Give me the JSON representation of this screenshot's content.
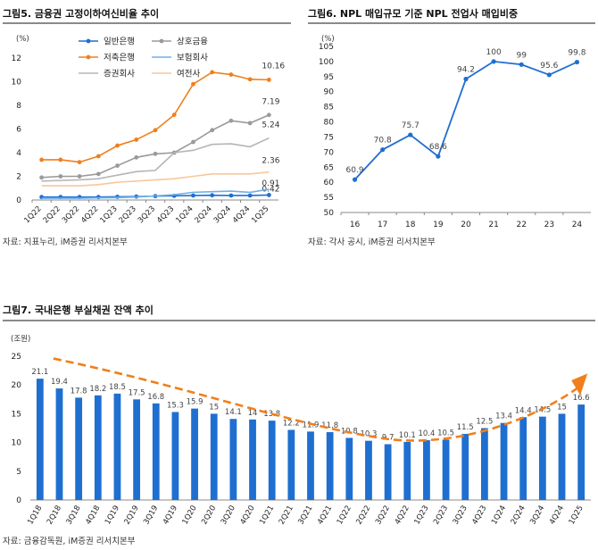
{
  "fig5": {
    "title": "그림5.  금융권 고정이하여신비율 추이",
    "source": "자료: 지표누리, iM증권 리서치본부",
    "chart_data": {
      "type": "line",
      "unit_label": "(%)",
      "ylim": [
        0,
        12
      ],
      "yticks": [
        0,
        2,
        4,
        6,
        8,
        10,
        12
      ],
      "categories": [
        "1Q22",
        "2Q22",
        "3Q22",
        "4Q22",
        "1Q23",
        "2Q23",
        "3Q23",
        "4Q23",
        "1Q24",
        "2Q24",
        "3Q24",
        "4Q24",
        "1Q25"
      ],
      "legend_position": "top",
      "series": [
        {
          "name": "일반은행",
          "color": "#1f6fd1",
          "marker": true,
          "values": [
            0.25,
            0.25,
            0.25,
            0.25,
            0.27,
            0.29,
            0.33,
            0.35,
            0.38,
            0.4,
            0.38,
            0.38,
            0.42
          ],
          "end_label": "0.42"
        },
        {
          "name": "상호금융",
          "color": "#9a9a9a",
          "marker": true,
          "values": [
            1.9,
            2.0,
            2.0,
            2.2,
            2.9,
            3.6,
            3.9,
            4.0,
            4.9,
            5.9,
            6.7,
            6.5,
            7.19
          ],
          "end_label": "7.19"
        },
        {
          "name": "저축은행",
          "color": "#f07f1c",
          "marker": true,
          "values": [
            3.4,
            3.4,
            3.2,
            3.7,
            4.6,
            5.1,
            5.9,
            7.2,
            9.8,
            10.8,
            10.6,
            10.2,
            10.16
          ],
          "end_label": "10.16"
        },
        {
          "name": "보험회사",
          "color": "#6fb0e8",
          "marker": false,
          "values": [
            0.15,
            0.15,
            0.15,
            0.18,
            0.2,
            0.25,
            0.35,
            0.45,
            0.65,
            0.7,
            0.75,
            0.65,
            0.91
          ],
          "end_label": "0.91"
        },
        {
          "name": "증권회사",
          "color": "#b5b5b5",
          "marker": false,
          "values": [
            1.6,
            1.65,
            1.7,
            1.8,
            2.1,
            2.4,
            2.5,
            4.0,
            4.2,
            4.7,
            4.75,
            4.5,
            5.24
          ],
          "end_label": "5.24"
        },
        {
          "name": "여전사",
          "color": "#f8c79a",
          "marker": false,
          "values": [
            1.2,
            1.2,
            1.2,
            1.3,
            1.5,
            1.6,
            1.7,
            1.8,
            2.0,
            2.2,
            2.2,
            2.2,
            2.36
          ],
          "end_label": "2.36"
        }
      ]
    }
  },
  "fig6": {
    "title": "그림6.  NPL 매입규모 기준 NPL 전업사 매입비중",
    "source": "자료: 각사 공시, iM증권 리서치본부",
    "chart_data": {
      "type": "line",
      "unit_label": "(%)",
      "ylim": [
        50,
        105
      ],
      "yticks": [
        50,
        55,
        60,
        65,
        70,
        75,
        80,
        85,
        90,
        95,
        100,
        105
      ],
      "categories": [
        "16",
        "17",
        "18",
        "19",
        "20",
        "21",
        "22",
        "23",
        "24"
      ],
      "series": [
        {
          "color": "#1f6fd1",
          "values": [
            60.9,
            70.8,
            75.7,
            68.6,
            94.2,
            100,
            99,
            95.6,
            99.8
          ],
          "labels": [
            "60.9",
            "70.8",
            "75.7",
            "68.6",
            "94.2",
            "100",
            "99",
            "95.6",
            "99.8"
          ]
        }
      ]
    }
  },
  "fig7": {
    "title": "그림7.  국내은행 부실채권 잔액 추이",
    "source": "자료: 금융감독원, iM증권 리서치본부",
    "chart_data": {
      "type": "bar",
      "unit_label": "(조원)",
      "ylim": [
        0,
        25
      ],
      "yticks": [
        0,
        5,
        10,
        15,
        20,
        25
      ],
      "color": "#1f6fd1",
      "trend_color": "#f07f1c",
      "categories": [
        "1Q18",
        "2Q18",
        "3Q18",
        "4Q18",
        "1Q19",
        "2Q19",
        "3Q19",
        "4Q19",
        "1Q20",
        "2Q20",
        "3Q20",
        "4Q20",
        "1Q21",
        "2Q21",
        "3Q21",
        "4Q21",
        "1Q22",
        "2Q22",
        "3Q22",
        "4Q22",
        "1Q23",
        "2Q23",
        "3Q23",
        "4Q23",
        "1Q24",
        "2Q24",
        "3Q24",
        "4Q24",
        "1Q25"
      ],
      "values": [
        21.1,
        19.4,
        17.8,
        18.2,
        18.5,
        17.5,
        16.8,
        15.3,
        15.9,
        15,
        14.1,
        14,
        13.8,
        12.2,
        11.9,
        11.8,
        10.8,
        10.3,
        9.7,
        10.1,
        10.4,
        10.5,
        11.5,
        12.5,
        13.4,
        14.4,
        14.5,
        15,
        16.6
      ],
      "labels": [
        "21.1",
        "19.4",
        "17.8",
        "18.2",
        "18.5",
        "17.5",
        "16.8",
        "15.3",
        "15.9",
        "15",
        "14.1",
        "14",
        "13.8",
        "12.2",
        "11.9",
        "11.8",
        "10.8",
        "10.3",
        "9.7",
        "10.1",
        "10.4",
        "10.5",
        "11.5",
        "12.5",
        "13.4",
        "14.4",
        "14.5",
        "15",
        "16.6"
      ]
    }
  }
}
